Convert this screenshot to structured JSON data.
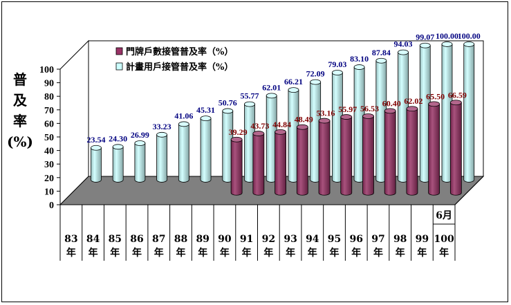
{
  "chart_data": {
    "type": "bar",
    "ylabel": [
      "普",
      "及",
      "率",
      "(%)"
    ],
    "ylim": [
      0,
      100
    ],
    "yticks": [
      0,
      10,
      20,
      30,
      40,
      50,
      60,
      70,
      80,
      90,
      100
    ],
    "categories": [
      {
        "line1": "83",
        "line2": "年"
      },
      {
        "line1": "84",
        "line2": "年"
      },
      {
        "line1": "85",
        "line2": "年"
      },
      {
        "line1": "86",
        "line2": "年"
      },
      {
        "line1": "87",
        "line2": "年"
      },
      {
        "line1": "88",
        "line2": "年"
      },
      {
        "line1": "89",
        "line2": "年"
      },
      {
        "line1": "90",
        "line2": "年"
      },
      {
        "line1": "91",
        "line2": "年"
      },
      {
        "line1": "92",
        "line2": "年"
      },
      {
        "line1": "93",
        "line2": "年"
      },
      {
        "line1": "94",
        "line2": "年"
      },
      {
        "line1": "95",
        "line2": "年"
      },
      {
        "line1": "96",
        "line2": "年"
      },
      {
        "line1": "97",
        "line2": "年"
      },
      {
        "line1": "98",
        "line2": "年"
      },
      {
        "line1": "99",
        "line2": "年"
      },
      {
        "line1": "100",
        "line2": "年",
        "top": "6月"
      }
    ],
    "series": [
      {
        "name": "計畫用戶接管普及率（%）",
        "color": "#ccffff",
        "labelColor": "#000080",
        "values": [
          23.54,
          24.3,
          26.99,
          33.23,
          41.06,
          45.31,
          50.76,
          55.77,
          62.01,
          66.21,
          72.09,
          79.03,
          83.1,
          87.84,
          94.03,
          99.07,
          100.0,
          100.0
        ],
        "labels": [
          "23.54",
          "24.30",
          "26.99",
          "33.23",
          "41.06",
          "45.31",
          "50.76",
          "55.77",
          "62.01",
          "66.21",
          "72.09",
          "79.03",
          "83.10",
          "87.84",
          "94.03",
          "99.07",
          "100.00",
          "100.00"
        ]
      },
      {
        "name": "門牌戶數接管普及率（%）",
        "color": "#993366",
        "labelColor": "#800000",
        "values": [
          null,
          null,
          null,
          null,
          null,
          null,
          null,
          39.29,
          43.73,
          44.84,
          48.49,
          53.16,
          55.97,
          56.53,
          60.4,
          62.02,
          65.5,
          66.59
        ],
        "labels": [
          null,
          null,
          null,
          null,
          null,
          null,
          null,
          "39.29",
          "43.73",
          "44.84",
          "48.49",
          "53.16",
          "55.97",
          "56.53",
          "60.40",
          "62.02",
          "65.50",
          "66.59"
        ]
      }
    ],
    "legend_position": "top"
  }
}
